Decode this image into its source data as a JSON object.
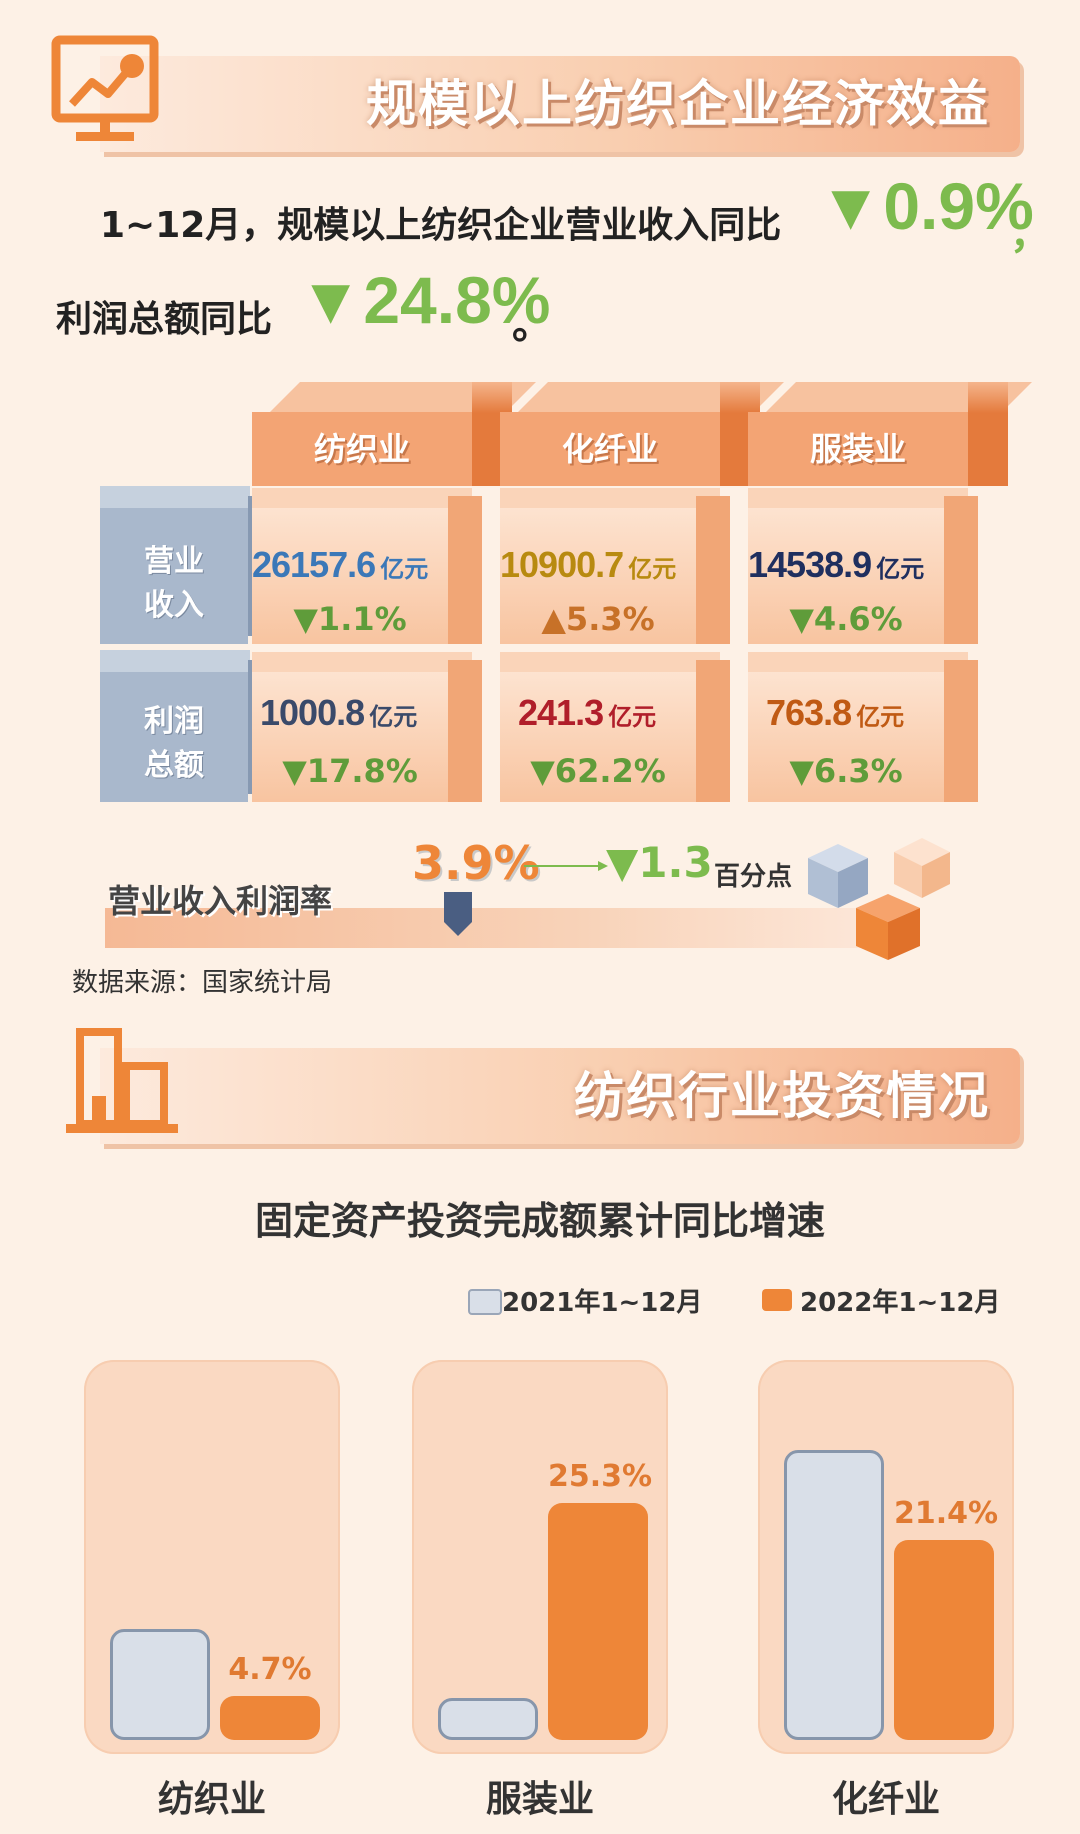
{
  "section1": {
    "title": "规模以上纺织企业经济效益",
    "summary_line1": "1~12月，规模以上纺织企业营业收入同比",
    "revenue_change": "▼0.9%",
    "comma": "，",
    "summary_line2": "利润总额同比",
    "profit_change": "▼24.8%",
    "period": "。"
  },
  "table": {
    "columns": [
      "纺织业",
      "化纤业",
      "服装业"
    ],
    "row_revenue": [
      "营业",
      "收入"
    ],
    "row_profit": [
      "利润",
      "总额"
    ],
    "unit": "亿元",
    "revenue": [
      {
        "value": "26157.6",
        "change": "▼1.1%",
        "color": "#3b78b8"
      },
      {
        "value": "10900.7",
        "change": "▲5.3%",
        "color": "#b88a10"
      },
      {
        "value": "14538.9",
        "change": "▼4.6%",
        "color": "#1f2f5f"
      }
    ],
    "profit": [
      {
        "value": "1000.8",
        "change": "▼17.8%",
        "color": "#3a4a6a"
      },
      {
        "value": "241.3",
        "change": "▼62.2%",
        "color": "#b01e2a"
      },
      {
        "value": "763.8",
        "change": "▼6.3%",
        "color": "#c05a14"
      }
    ]
  },
  "profit_rate": {
    "label": "营业收入利润率",
    "value": "3.9%",
    "change": "▼1.3",
    "change_unit": "百分点"
  },
  "source": "数据来源：国家统计局",
  "section2": {
    "title": "纺织行业投资情况"
  },
  "chart_data": {
    "type": "bar",
    "title": "固定资产投资完成额累计同比增速",
    "categories": [
      "纺织业",
      "服装业",
      "化纤业"
    ],
    "series": [
      {
        "name": "2021年1~12月",
        "values": [
          11.9,
          4.5,
          31.0
        ],
        "color": "#d9dfe8"
      },
      {
        "name": "2022年1~12月",
        "values": [
          4.7,
          25.3,
          21.4
        ],
        "color": "#ee8638"
      }
    ],
    "data_labels_2022": [
      "4.7%",
      "25.3%",
      "21.4%"
    ],
    "ylim": [
      0,
      33
    ],
    "legend": "top-right"
  },
  "colors": {
    "accent_orange": "#ee8638",
    "green_down": "#7dbb4e",
    "bg": "#fdf1e6"
  }
}
